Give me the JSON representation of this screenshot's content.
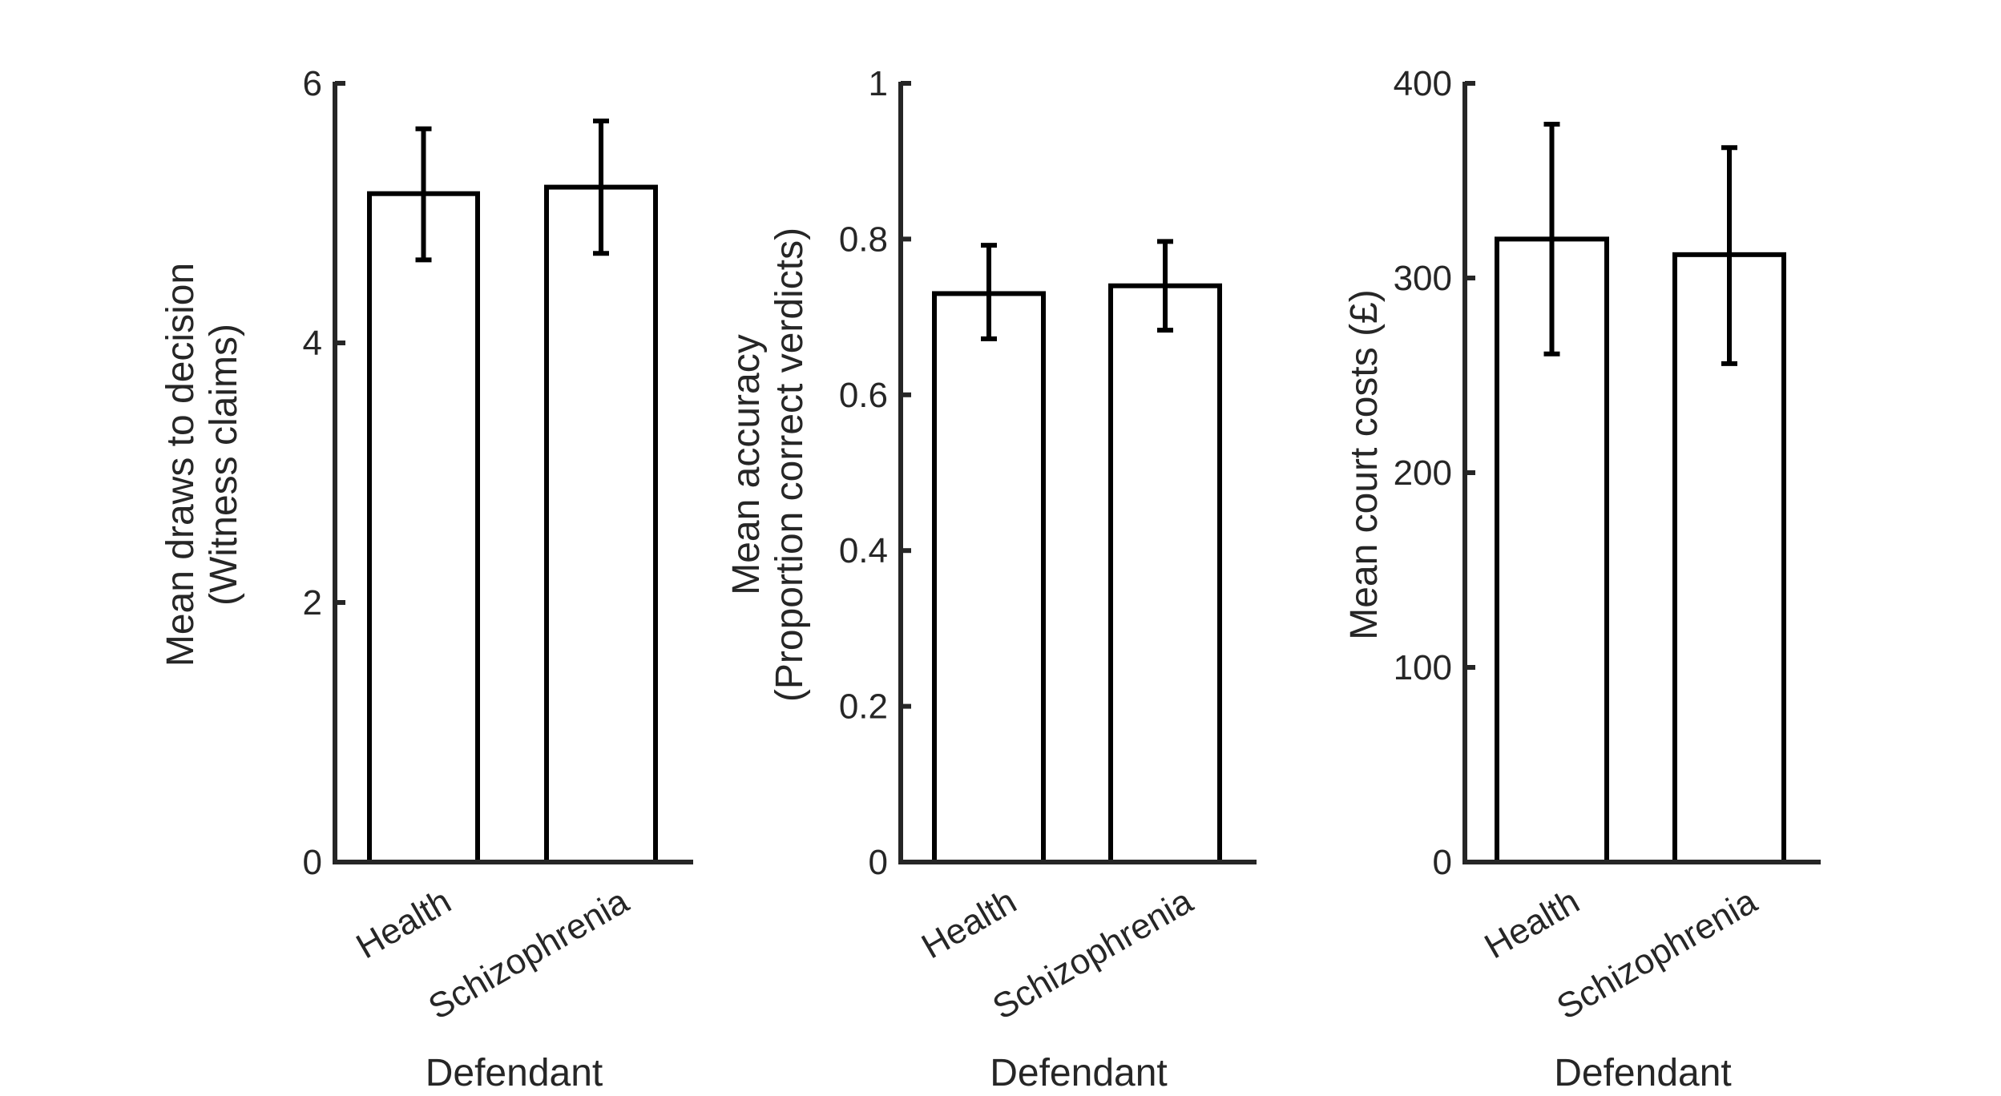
{
  "chart_data": [
    {
      "type": "bar",
      "xlabel": "Defendant",
      "ylabel_lines": [
        "Mean draws to decision",
        "(Witness claims)"
      ],
      "categories": [
        "Health",
        "Schizophrenia"
      ],
      "values": [
        5.15,
        5.2
      ],
      "error": [
        [
          4.64,
          5.65
        ],
        [
          4.69,
          5.71
        ]
      ],
      "ylim": [
        0,
        6
      ],
      "yticks": [
        0,
        2,
        4,
        6
      ],
      "ytick_labels": [
        "0",
        "2",
        "4",
        "6"
      ]
    },
    {
      "type": "bar",
      "xlabel": "Defendant",
      "ylabel_lines": [
        "Mean accuracy",
        "(Proportion correct verdicts)"
      ],
      "categories": [
        "Health",
        "Schizophrenia"
      ],
      "values": [
        0.73,
        0.74
      ],
      "error": [
        [
          0.672,
          0.792
        ],
        [
          0.683,
          0.797
        ]
      ],
      "ylim": [
        0,
        1
      ],
      "yticks": [
        0,
        0.2,
        0.4,
        0.6,
        0.8,
        1
      ],
      "ytick_labels": [
        "0",
        "0.2",
        "0.4",
        "0.6",
        "0.8",
        "1"
      ]
    },
    {
      "type": "bar",
      "xlabel": "Defendant",
      "ylabel_lines": [
        "Mean court costs (£)"
      ],
      "categories": [
        "Health",
        "Schizophrenia"
      ],
      "values": [
        320,
        312
      ],
      "error": [
        [
          261,
          379
        ],
        [
          256,
          367
        ]
      ],
      "ylim": [
        0,
        400
      ],
      "yticks": [
        0,
        100,
        200,
        300,
        400
      ],
      "ytick_labels": [
        "0",
        "100",
        "200",
        "300",
        "400"
      ]
    }
  ],
  "style": {
    "bar_fill": "#ffffff",
    "bar_edge": "#000000",
    "axis_color": "#262626",
    "text_color": "#262626"
  }
}
